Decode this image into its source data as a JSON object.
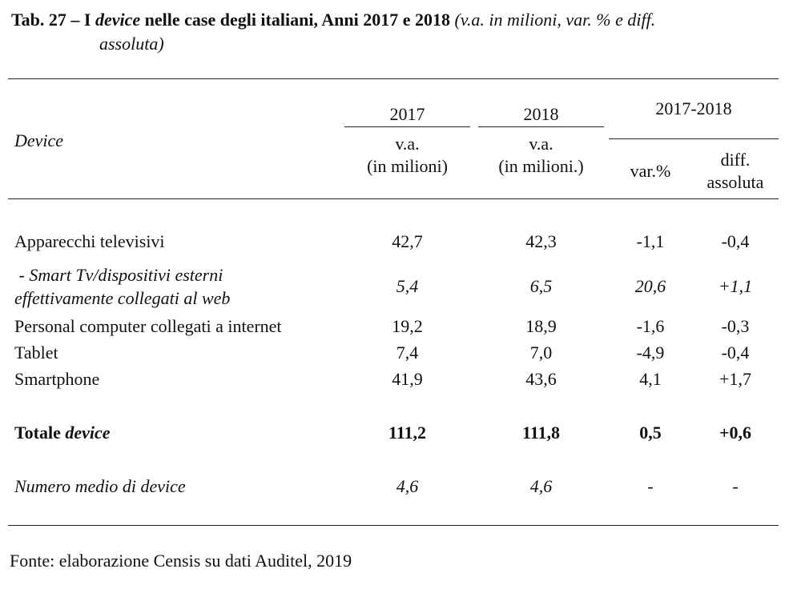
{
  "title": {
    "prefix": "Tab. 27 – I ",
    "device_word": "device",
    "main": " nelle case degli italiani, Anni 2017 e 2018 ",
    "subtitle_part1": "(v.a. in milioni, var. % e diff.",
    "subtitle_part2": "assoluta)"
  },
  "header": {
    "col0": "Device",
    "year1": "2017",
    "year2": "2018",
    "period": "2017-2018",
    "year1_sub1": "v.a.",
    "year1_sub2": "(in milioni)",
    "year2_sub1": "v.a.",
    "year2_sub2": "(in milioni.)",
    "var": "var.%",
    "diff1": "diff.",
    "diff2": "assoluta"
  },
  "rows": [
    {
      "label": "Apparecchi televisivi",
      "v2017": "42,7",
      "v2018": "42,3",
      "var": "-1,1",
      "diff": "-0,4"
    },
    {
      "label_line1": " - Smart Tv/dispositivi esterni",
      "label_line2": "effettivamente collegati al web",
      "v2017": "5,4",
      "v2018": "6,5",
      "var": "20,6",
      "diff": "+1,1"
    },
    {
      "label": "Personal computer collegati a internet",
      "v2017": "19,2",
      "v2018": "18,9",
      "var": "-1,6",
      "diff": "-0,3"
    },
    {
      "label": "Tablet",
      "v2017": "7,4",
      "v2018": "7,0",
      "var": "-4,9",
      "diff": "-0,4"
    },
    {
      "label": "Smartphone",
      "v2017": "41,9",
      "v2018": "43,6",
      "var": "4,1",
      "diff": "+1,7"
    }
  ],
  "total": {
    "label_a": "Totale ",
    "label_b": "device",
    "v2017": "111,2",
    "v2018": "111,8",
    "var": "0,5",
    "diff": "+0,6"
  },
  "average": {
    "label": "Numero medio di device",
    "v2017": "4,6",
    "v2018": "4,6",
    "var": "-",
    "diff": "-"
  },
  "source": "Fonte: elaborazione Censis su dati Auditel, 2019"
}
